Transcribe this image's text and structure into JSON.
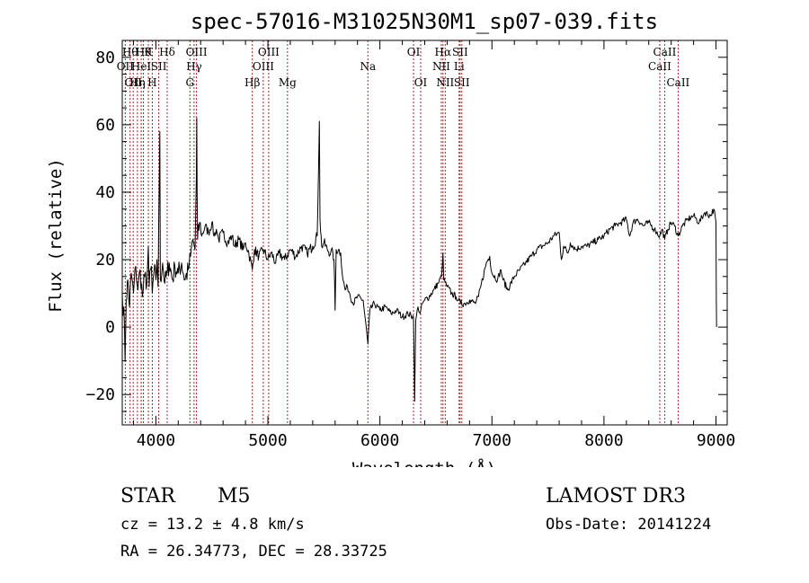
{
  "chart_data": {
    "type": "line",
    "title": "spec-57016-M31025N30M1_sp07-039.fits",
    "xlabel": "Wavelength (Å)",
    "ylabel": "Flux (relative)",
    "xlim": [
      3700,
      9100
    ],
    "ylim": [
      -29,
      85
    ],
    "xticks": [
      4000,
      5000,
      6000,
      7000,
      8000,
      9000
    ],
    "yticks": [
      -20,
      0,
      20,
      40,
      60,
      80
    ],
    "line_color": "#000000",
    "marker_color": "#b22222",
    "series": [
      {
        "name": "flux",
        "points": [
          [
            3700,
            10
          ],
          [
            3720,
            0
          ],
          [
            3725,
            -10
          ],
          [
            3735,
            8
          ],
          [
            3750,
            14
          ],
          [
            3765,
            6
          ],
          [
            3780,
            16
          ],
          [
            3800,
            10
          ],
          [
            3820,
            18
          ],
          [
            3840,
            11
          ],
          [
            3860,
            17
          ],
          [
            3880,
            9
          ],
          [
            3900,
            15
          ],
          [
            3920,
            13
          ],
          [
            3933,
            24
          ],
          [
            3940,
            12
          ],
          [
            3960,
            18
          ],
          [
            3968,
            10
          ],
          [
            3985,
            17
          ],
          [
            4000,
            14
          ],
          [
            4010,
            20
          ],
          [
            4020,
            12
          ],
          [
            4035,
            58
          ],
          [
            4040,
            14
          ],
          [
            4060,
            19
          ],
          [
            4080,
            13
          ],
          [
            4101,
            16
          ],
          [
            4120,
            19
          ],
          [
            4150,
            14
          ],
          [
            4170,
            18
          ],
          [
            4200,
            16
          ],
          [
            4230,
            19
          ],
          [
            4260,
            14
          ],
          [
            4290,
            17
          ],
          [
            4310,
            21
          ],
          [
            4330,
            26
          ],
          [
            4350,
            23
          ],
          [
            4362,
            45
          ],
          [
            4365,
            62
          ],
          [
            4368,
            40
          ],
          [
            4372,
            26
          ],
          [
            4390,
            31
          ],
          [
            4410,
            27
          ],
          [
            4440,
            30
          ],
          [
            4470,
            28
          ],
          [
            4500,
            31
          ],
          [
            4520,
            27
          ],
          [
            4540,
            29
          ],
          [
            4560,
            26
          ],
          [
            4600,
            28
          ],
          [
            4640,
            25
          ],
          [
            4680,
            27
          ],
          [
            4700,
            24
          ],
          [
            4740,
            26
          ],
          [
            4780,
            23
          ],
          [
            4800,
            25
          ],
          [
            4830,
            22
          ],
          [
            4861,
            17
          ],
          [
            4880,
            23
          ],
          [
            4920,
            21
          ],
          [
            4960,
            23
          ],
          [
            5000,
            20
          ],
          [
            5030,
            22
          ],
          [
            5070,
            19
          ],
          [
            5100,
            22
          ],
          [
            5150,
            20
          ],
          [
            5200,
            23
          ],
          [
            5250,
            21
          ],
          [
            5300,
            24
          ],
          [
            5350,
            22
          ],
          [
            5400,
            24
          ],
          [
            5440,
            27
          ],
          [
            5460,
            61
          ],
          [
            5465,
            32
          ],
          [
            5480,
            24
          ],
          [
            5500,
            25
          ],
          [
            5530,
            23
          ],
          [
            5560,
            22
          ],
          [
            5580,
            22
          ],
          [
            5590,
            20
          ],
          [
            5600,
            5
          ],
          [
            5610,
            23
          ],
          [
            5630,
            23
          ],
          [
            5650,
            22
          ],
          [
            5670,
            14
          ],
          [
            5690,
            11
          ],
          [
            5710,
            12
          ],
          [
            5730,
            10
          ],
          [
            5760,
            7
          ],
          [
            5800,
            9
          ],
          [
            5850,
            8
          ],
          [
            5893,
            -5
          ],
          [
            5910,
            5
          ],
          [
            5950,
            7
          ],
          [
            6000,
            5
          ],
          [
            6050,
            6
          ],
          [
            6100,
            4
          ],
          [
            6150,
            5
          ],
          [
            6200,
            3
          ],
          [
            6250,
            4
          ],
          [
            6300,
            3
          ],
          [
            6310,
            -22
          ],
          [
            6320,
            2
          ],
          [
            6340,
            6
          ],
          [
            6360,
            4
          ],
          [
            6380,
            7
          ],
          [
            6400,
            8
          ],
          [
            6440,
            9
          ],
          [
            6480,
            11
          ],
          [
            6520,
            13
          ],
          [
            6550,
            15
          ],
          [
            6563,
            22
          ],
          [
            6570,
            14
          ],
          [
            6600,
            12
          ],
          [
            6640,
            10
          ],
          [
            6680,
            9
          ],
          [
            6700,
            8
          ],
          [
            6720,
            7
          ],
          [
            6760,
            7
          ],
          [
            6800,
            8
          ],
          [
            6850,
            7
          ],
          [
            6880,
            9
          ],
          [
            6900,
            12
          ],
          [
            6950,
            19
          ],
          [
            6980,
            21
          ],
          [
            7000,
            16
          ],
          [
            7050,
            14
          ],
          [
            7080,
            17
          ],
          [
            7100,
            14
          ],
          [
            7140,
            11
          ],
          [
            7200,
            15
          ],
          [
            7250,
            17
          ],
          [
            7300,
            19
          ],
          [
            7350,
            21
          ],
          [
            7400,
            23
          ],
          [
            7450,
            24
          ],
          [
            7500,
            25
          ],
          [
            7550,
            27
          ],
          [
            7600,
            28
          ],
          [
            7620,
            20
          ],
          [
            7640,
            24
          ],
          [
            7680,
            22
          ],
          [
            7700,
            25
          ],
          [
            7750,
            23
          ],
          [
            7800,
            24
          ],
          [
            7850,
            24
          ],
          [
            7900,
            25
          ],
          [
            7950,
            26
          ],
          [
            8000,
            27
          ],
          [
            8050,
            29
          ],
          [
            8100,
            30
          ],
          [
            8150,
            31
          ],
          [
            8200,
            32
          ],
          [
            8230,
            27
          ],
          [
            8260,
            31
          ],
          [
            8300,
            32
          ],
          [
            8350,
            30
          ],
          [
            8400,
            31
          ],
          [
            8450,
            29
          ],
          [
            8498,
            27
          ],
          [
            8520,
            29
          ],
          [
            8542,
            26
          ],
          [
            8570,
            29
          ],
          [
            8600,
            31
          ],
          [
            8630,
            30
          ],
          [
            8662,
            27
          ],
          [
            8700,
            30
          ],
          [
            8750,
            32
          ],
          [
            8800,
            33
          ],
          [
            8850,
            31
          ],
          [
            8900,
            34
          ],
          [
            8950,
            33
          ],
          [
            8980,
            35
          ],
          [
            9000,
            31
          ],
          [
            9003,
            8
          ],
          [
            9005,
            0
          ]
        ]
      }
    ],
    "line_markers": [
      {
        "wl": 3727,
        "label": "OII",
        "row": 2
      },
      {
        "wl": 3770,
        "label": "Hθ",
        "row": 1
      },
      {
        "wl": 3798,
        "label": "OII",
        "row": 3
      },
      {
        "wl": 3835,
        "label": "Hη",
        "row": 3
      },
      {
        "wl": 3869,
        "label": "HeI",
        "row": 2
      },
      {
        "wl": 3889,
        "label": "Hθ",
        "row": 1
      },
      {
        "wl": 3933,
        "label": "K",
        "row": 1
      },
      {
        "wl": 3968,
        "label": "H",
        "row": 3
      },
      {
        "wl": 4026,
        "label": "SII",
        "row": 2
      },
      {
        "wl": 4101,
        "label": "Hδ",
        "row": 1
      },
      {
        "wl": 4304,
        "label": "G",
        "row": 3
      },
      {
        "wl": 4341,
        "label": "Hγ",
        "row": 2
      },
      {
        "wl": 4363,
        "label": "OIII",
        "row": 1
      },
      {
        "wl": 4861,
        "label": "Hβ",
        "row": 3
      },
      {
        "wl": 4959,
        "label": "OIII",
        "row": 2
      },
      {
        "wl": 5007,
        "label": "OIII",
        "row": 1
      },
      {
        "wl": 5175,
        "label": "Mg",
        "row": 3
      },
      {
        "wl": 5893,
        "label": "Na",
        "row": 2
      },
      {
        "wl": 6300,
        "label": "OI",
        "row": 1
      },
      {
        "wl": 6364,
        "label": "OI",
        "row": 3
      },
      {
        "wl": 6548,
        "label": "NII",
        "row": 2
      },
      {
        "wl": 6563,
        "label": "Hα",
        "row": 1
      },
      {
        "wl": 6583,
        "label": "NII",
        "row": 3
      },
      {
        "wl": 6707,
        "label": "Li",
        "row": 2
      },
      {
        "wl": 6716,
        "label": "SII",
        "row": 1
      },
      {
        "wl": 6731,
        "label": "SII",
        "row": 3
      },
      {
        "wl": 8498,
        "label": "CaII",
        "row": 2
      },
      {
        "wl": 8542,
        "label": "CaII",
        "row": 1
      },
      {
        "wl": 8662,
        "label": "CaII",
        "row": 3
      }
    ]
  },
  "info": {
    "object_class": "STAR",
    "subclass": "M5",
    "survey": "LAMOST DR3",
    "redshift": "cz = 13.2 ± 4.8 km/s",
    "obs_date": "Obs-Date: 20141224",
    "coords": "RA =  26.34773, DEC =  28.33725"
  }
}
